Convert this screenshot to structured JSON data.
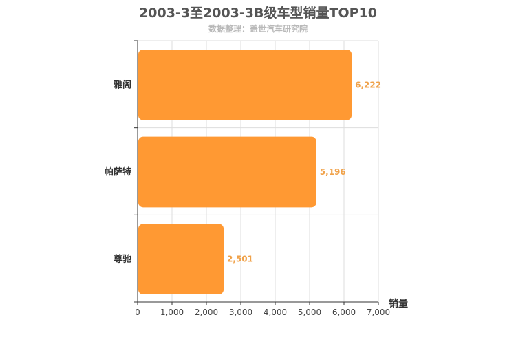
{
  "chart_data": {
    "type": "bar",
    "orientation": "horizontal",
    "title": "2003-3至2003-3B级车型销量TOP10",
    "subtitle": "数据整理：盖世汽车研究院",
    "categories": [
      "雅阁",
      "帕萨特",
      "尊驰"
    ],
    "values": [
      6222,
      5196,
      2501
    ],
    "value_labels": [
      "6,222",
      "5,196",
      "2,501"
    ],
    "xlabel": "销量",
    "ylabel": "",
    "xlim": [
      0,
      7000
    ],
    "xticks": [
      0,
      1000,
      2000,
      3000,
      4000,
      5000,
      6000,
      7000
    ],
    "xtick_labels": [
      "0",
      "1,000",
      "2,000",
      "3,000",
      "4,000",
      "5,000",
      "6,000",
      "7,000"
    ],
    "grid": true,
    "bar_color": "#ff9933",
    "value_label_color": "#f0a24a"
  }
}
